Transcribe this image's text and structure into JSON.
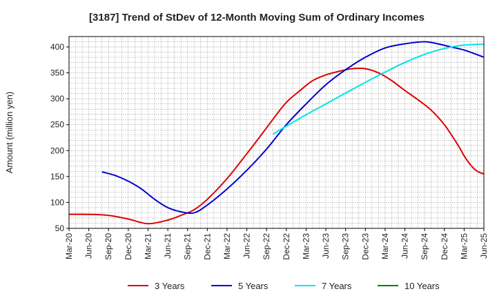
{
  "chart_data": {
    "type": "line",
    "title": "[3187]  Trend of StDev of 12-Month Moving Sum of Ordinary Incomes",
    "xlabel": "",
    "ylabel": "Amount (million yen)",
    "ylim": [
      50,
      420
    ],
    "yticks": [
      50,
      100,
      150,
      200,
      250,
      300,
      350,
      400
    ],
    "xtick_labels": [
      "Mar-20",
      "Jun-20",
      "Sep-20",
      "Dec-20",
      "Mar-21",
      "Jun-21",
      "Sep-21",
      "Dec-21",
      "Mar-22",
      "Jun-22",
      "Sep-22",
      "Dec-22",
      "Mar-23",
      "Jun-23",
      "Sep-23",
      "Dec-23",
      "Mar-24",
      "Jun-24",
      "Sep-24",
      "Dec-24",
      "Mar-25",
      "Jun-25"
    ],
    "x_unit": "month index from Mar-20",
    "xlim": [
      0,
      63
    ],
    "grid": true,
    "legend_position": "bottom",
    "series": [
      {
        "name": "3 Years",
        "color": "#dd0000",
        "x": [
          0,
          3,
          6,
          9,
          12,
          15,
          17,
          19,
          21,
          24,
          27,
          29,
          31,
          33,
          35,
          37,
          39,
          41,
          43,
          45,
          47,
          49,
          51,
          53,
          55,
          57,
          59,
          60,
          61,
          62,
          63
        ],
        "values": [
          77,
          77,
          75,
          68,
          59,
          66,
          75,
          86,
          106,
          146,
          194,
          227,
          261,
          293,
          315,
          335,
          346,
          353,
          358,
          358,
          350,
          335,
          316,
          298,
          278,
          250,
          212,
          190,
          172,
          160,
          155
        ]
      },
      {
        "name": "5 Years",
        "color": "#0000cc",
        "x": [
          5,
          7,
          9,
          11,
          13,
          15,
          17,
          19,
          21,
          24,
          27,
          30,
          33,
          36,
          39,
          42,
          45,
          48,
          51,
          54,
          56,
          58,
          60,
          62,
          63
        ],
        "values": [
          159,
          152,
          141,
          126,
          106,
          90,
          82,
          80,
          95,
          126,
          162,
          203,
          250,
          290,
          327,
          356,
          380,
          398,
          406,
          410,
          406,
          400,
          394,
          385,
          380
        ]
      },
      {
        "name": "7 Years",
        "color": "#00e5e5",
        "x": [
          31,
          35,
          39,
          43,
          47,
          51,
          55,
          59,
          62,
          63
        ],
        "values": [
          232,
          262,
          290,
          318,
          345,
          370,
          390,
          402,
          405,
          405
        ]
      },
      {
        "name": "10 Years",
        "color": "#008000",
        "x": [],
        "values": []
      }
    ]
  }
}
